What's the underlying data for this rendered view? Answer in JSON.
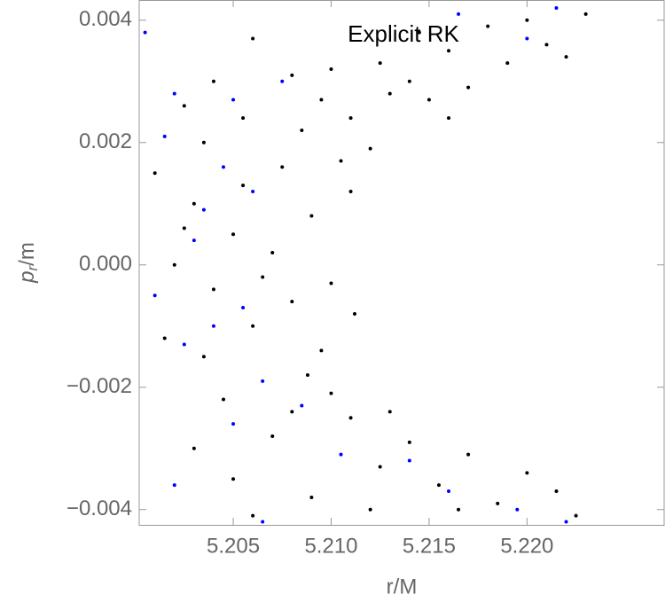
{
  "chart_data": {
    "type": "scatter",
    "title": "Explicit RK",
    "x_label": "r/M",
    "y_label": [
      "p",
      "r",
      "/m"
    ],
    "xlim": [
      5.2002,
      5.227
    ],
    "ylim": [
      -0.00425,
      0.00433
    ],
    "xticks": [
      5.205,
      {
        "value": 5.21,
        "label": "5.210"
      },
      5.215,
      {
        "value": 5.22,
        "label": "5.220"
      }
    ],
    "yticks": [
      {
        "value": 0.004,
        "label": "0.004"
      },
      {
        "value": 0.002,
        "label": "0.002"
      },
      {
        "value": 0,
        "label": "0.000"
      },
      {
        "value": -0.002,
        "label": "−0.002"
      },
      {
        "value": -0.004,
        "label": "−0.004"
      }
    ],
    "series": [
      {
        "color": "#000000",
        "x": [
          5.2025,
          5.204,
          5.206,
          5.208,
          5.2095,
          5.211,
          5.2125,
          5.214,
          5.215,
          5.216,
          5.217,
          5.218,
          5.219,
          5.22,
          5.221,
          5.222,
          5.223,
          5.2145,
          5.213,
          5.21,
          5.2055,
          5.2035,
          5.2085,
          5.212,
          5.2105,
          5.216,
          5.201,
          5.203,
          5.205,
          5.207,
          5.209,
          5.211,
          5.21,
          5.208,
          5.206,
          5.204,
          5.202,
          5.2015,
          5.2035,
          5.2075,
          5.2095,
          5.2112,
          5.2055,
          5.2025,
          5.2088,
          5.2065,
          5.203,
          5.205,
          5.207,
          5.209,
          5.211,
          5.2125,
          5.214,
          5.2155,
          5.217,
          5.2185,
          5.22,
          5.2215,
          5.2225,
          5.212,
          5.206,
          5.21,
          5.213,
          5.208,
          5.2045,
          5.2165
        ],
        "values": [
          0.0026,
          0.003,
          0.0037,
          0.0031,
          0.0027,
          0.0024,
          0.0033,
          0.003,
          0.0027,
          0.0035,
          0.0029,
          0.0039,
          0.0033,
          0.004,
          0.0036,
          0.0034,
          0.0041,
          0.0038,
          0.0028,
          0.0032,
          0.0024,
          0.002,
          0.0022,
          0.0019,
          0.0017,
          0.0024,
          0.0015,
          0.001,
          0.0005,
          0.0002,
          0.0008,
          0.0012,
          -0.0003,
          -0.0006,
          -0.001,
          -0.0004,
          0,
          -0.0012,
          -0.0015,
          0.0016,
          -0.0014,
          -0.0008,
          0.0013,
          0.0006,
          -0.0018,
          -0.0002,
          -0.003,
          -0.0035,
          -0.0028,
          -0.0038,
          -0.0025,
          -0.0033,
          -0.0029,
          -0.0036,
          -0.0031,
          -0.0039,
          -0.0034,
          -0.0037,
          -0.0041,
          -0.004,
          -0.0041,
          -0.0021,
          -0.0024,
          -0.0024,
          -0.0022,
          -0.004
        ]
      },
      {
        "color": "#0000ff",
        "x": [
          5.2005,
          5.202,
          5.2045,
          5.206,
          5.203,
          5.201,
          5.204,
          5.2055,
          5.2025,
          5.2065,
          5.2085,
          5.205,
          5.202,
          5.2065,
          5.214,
          5.216,
          5.2195,
          5.222,
          5.2165,
          5.22,
          5.2215,
          5.2075,
          5.205,
          5.2035,
          5.2105,
          5.2015
        ],
        "values": [
          0.0038,
          0.0028,
          0.0016,
          0.0012,
          0.0004,
          -0.0005,
          -0.001,
          -0.0007,
          -0.0013,
          -0.0019,
          -0.0023,
          -0.0026,
          -0.0036,
          -0.0042,
          -0.0032,
          -0.0037,
          -0.004,
          -0.0042,
          0.0041,
          0.0037,
          0.0042,
          0.003,
          0.0027,
          0.0009,
          -0.0031,
          0.0021
        ]
      }
    ]
  }
}
